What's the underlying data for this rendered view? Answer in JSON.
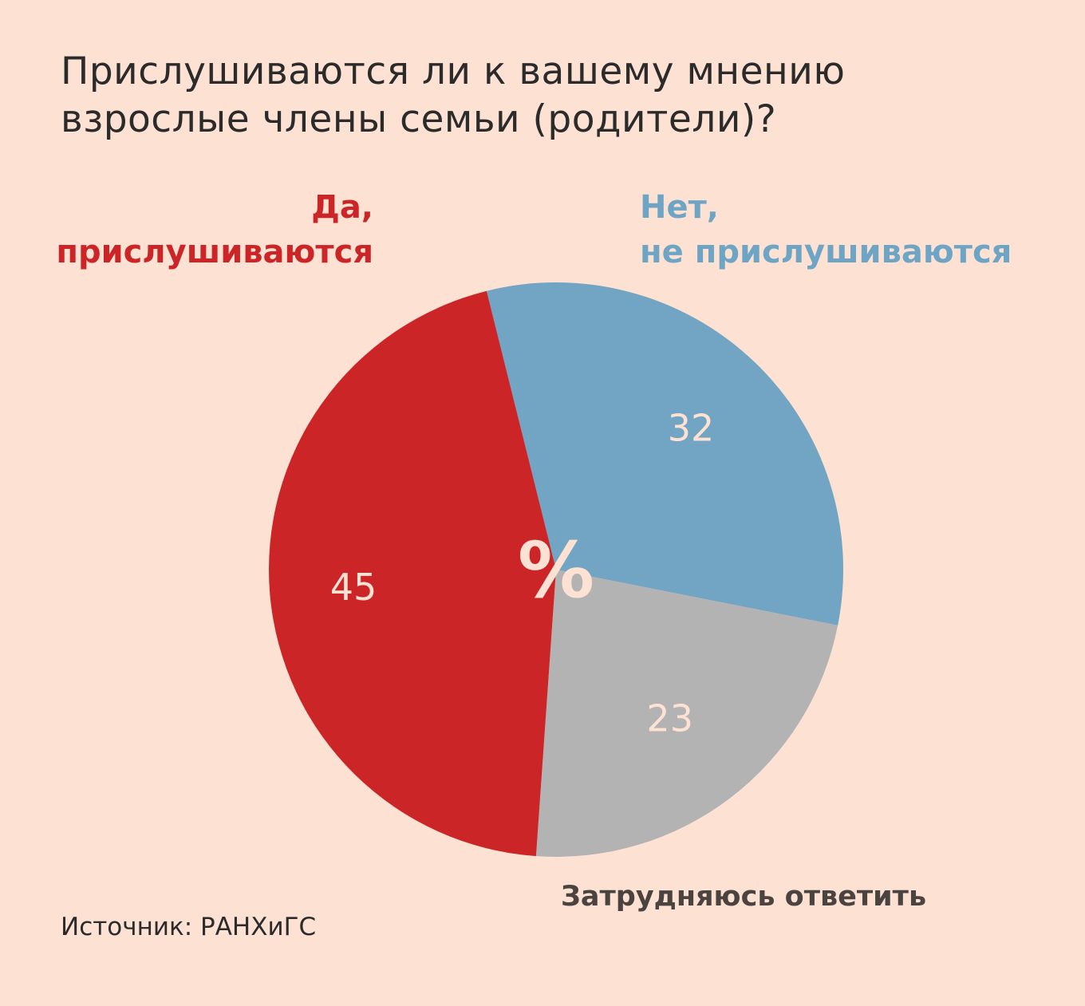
{
  "title_lines": [
    "Прислушиваются ли к вашему мнению",
    "взрослые члены семьи (родители)?"
  ],
  "legend": {
    "yes_lines": [
      "Да,",
      "прислушиваются"
    ],
    "no_lines": [
      "Нет,",
      "не прислушиваются"
    ],
    "hard": "Затрудняюсь ответить"
  },
  "center_symbol": "%",
  "source": "Источник: РАНХиГС",
  "colors": {
    "background": "#fde1d3",
    "yes": "#cc2528",
    "no": "#72a5c3",
    "hard": "#b3b3b3",
    "slice_label": "#fde1d3"
  },
  "chart_data": {
    "type": "pie",
    "title": "Прислушиваются ли к вашему мнению взрослые члены семьи (родители)?",
    "unit": "%",
    "slices": [
      {
        "label": "Нет, не прислушиваются",
        "value": 32,
        "color": "#72a5c3"
      },
      {
        "label": "Затрудняюсь ответить",
        "value": 23,
        "color": "#b3b3b3"
      },
      {
        "label": "Да, прислушиваются",
        "value": 45,
        "color": "#cc2528"
      }
    ]
  }
}
